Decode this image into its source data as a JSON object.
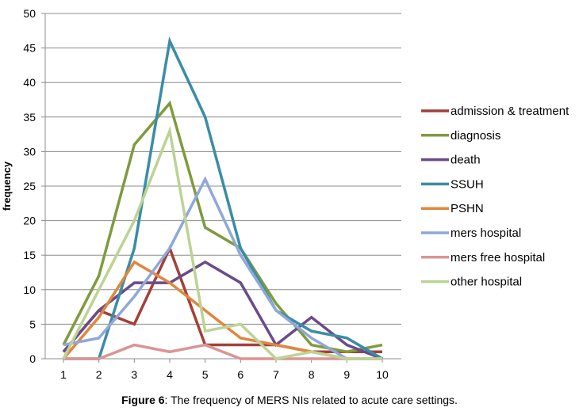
{
  "chart_data": {
    "type": "line",
    "title": "",
    "xlabel": "",
    "ylabel": "frequency",
    "x": [
      1,
      2,
      3,
      4,
      5,
      6,
      7,
      8,
      9,
      10
    ],
    "xlim": [
      1,
      10
    ],
    "ylim": [
      0,
      50
    ],
    "yticks": [
      0,
      5,
      10,
      15,
      20,
      25,
      30,
      35,
      40,
      45,
      50
    ],
    "grid": true,
    "legend_position": "right",
    "series": [
      {
        "name": "admission & treatment",
        "color": "#A3403A",
        "values": [
          1,
          7,
          5,
          16,
          2,
          2,
          2,
          1,
          1,
          1
        ]
      },
      {
        "name": "diagnosis",
        "color": "#7F9B3E",
        "values": [
          2,
          12,
          31,
          37,
          19,
          16,
          8,
          2,
          1,
          2
        ]
      },
      {
        "name": "death",
        "color": "#6A4B8A",
        "values": [
          1,
          7,
          11,
          11,
          14,
          11,
          2,
          6,
          2,
          0
        ]
      },
      {
        "name": "SSUH",
        "color": "#3A8DA6",
        "values": [
          0,
          0,
          16,
          46,
          35,
          16,
          7,
          4,
          3,
          0
        ]
      },
      {
        "name": "PSHN",
        "color": "#E0873D",
        "values": [
          0,
          6,
          14,
          11,
          7,
          3,
          2,
          1,
          0,
          0
        ]
      },
      {
        "name": "mers hospital",
        "color": "#8FA8D8",
        "values": [
          2,
          3,
          9,
          16,
          26,
          15,
          7,
          3,
          0,
          0
        ]
      },
      {
        "name": "mers free hospital",
        "color": "#D99594",
        "values": [
          0,
          0,
          2,
          1,
          2,
          0,
          0,
          0,
          0,
          0
        ]
      },
      {
        "name": "other hospital",
        "color": "#BCD395",
        "values": [
          0,
          10,
          20,
          33,
          4,
          5,
          0,
          1,
          0,
          0
        ]
      }
    ]
  },
  "caption": {
    "label": "Figure 6",
    "text": ": The frequency of MERS NIs related to acute care settings."
  }
}
